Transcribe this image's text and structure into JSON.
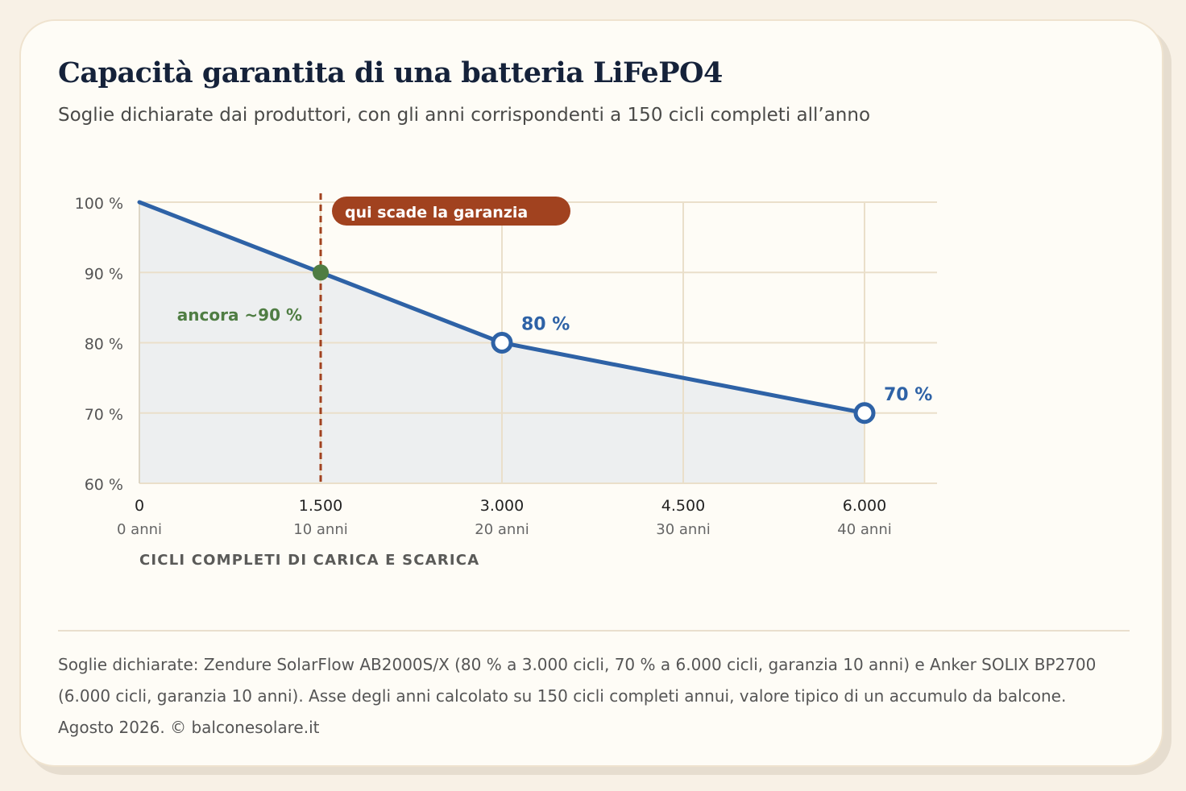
{
  "header": {
    "title": "Capacità garantita di una batteria LiFePO4",
    "subtitle": "Soglie dichiarate dai produttori, con gli anni corrispondenti a 150 cicli completi all’anno"
  },
  "colors": {
    "line": "#2e62a6",
    "fill": "#edeff0",
    "warranty": "#a1421f",
    "anchor": "#4f7d43",
    "grid": "#eadfca",
    "axis_text": "#555555"
  },
  "chart_data": {
    "type": "line",
    "x": [
      0,
      1500,
      3000,
      6000
    ],
    "y": [
      100,
      90,
      80,
      70
    ],
    "xlim": [
      0,
      6600
    ],
    "ylim": [
      60,
      100
    ],
    "x_ticks": [
      {
        "value": 0,
        "label": "0",
        "sublabel": "0 anni"
      },
      {
        "value": 1500,
        "label": "1.500",
        "sublabel": "10 anni"
      },
      {
        "value": 3000,
        "label": "3.000",
        "sublabel": "20 anni"
      },
      {
        "value": 4500,
        "label": "4.500",
        "sublabel": "30 anni"
      },
      {
        "value": 6000,
        "label": "6.000",
        "sublabel": "40 anni"
      }
    ],
    "y_ticks": [
      {
        "value": 100,
        "label": "100 %"
      },
      {
        "value": 90,
        "label": "90 %"
      },
      {
        "value": 80,
        "label": "80 %"
      },
      {
        "value": 70,
        "label": "70 %"
      },
      {
        "value": 60,
        "label": "60 %"
      }
    ],
    "xlabel": "CICLI COMPLETI DI CARICA E SCARICA",
    "ylabel": "",
    "grid": true,
    "area_fill": true,
    "point_labels": [
      {
        "x": 3000,
        "y": 80,
        "label": "80 %"
      },
      {
        "x": 6000,
        "y": 70,
        "label": "70 %"
      }
    ],
    "warranty": {
      "x": 1500,
      "label": "qui scade la garanzia"
    },
    "anchor": {
      "x": 1500,
      "y": 90,
      "label": "ancora ~90 %"
    }
  },
  "footer": {
    "source": "Soglie dichiarate: Zendure SolarFlow AB2000S/X (80 % a 3.000 cicli, 70 % a 6.000 cicli, garanzia 10 anni) e Anker SOLIX BP2700 (6.000 cicli, garanzia 10 anni). Asse degli anni calcolato su 150 cicli completi annui, valore tipico di un accumulo da balcone. Agosto 2026. © balconesolare.it"
  }
}
